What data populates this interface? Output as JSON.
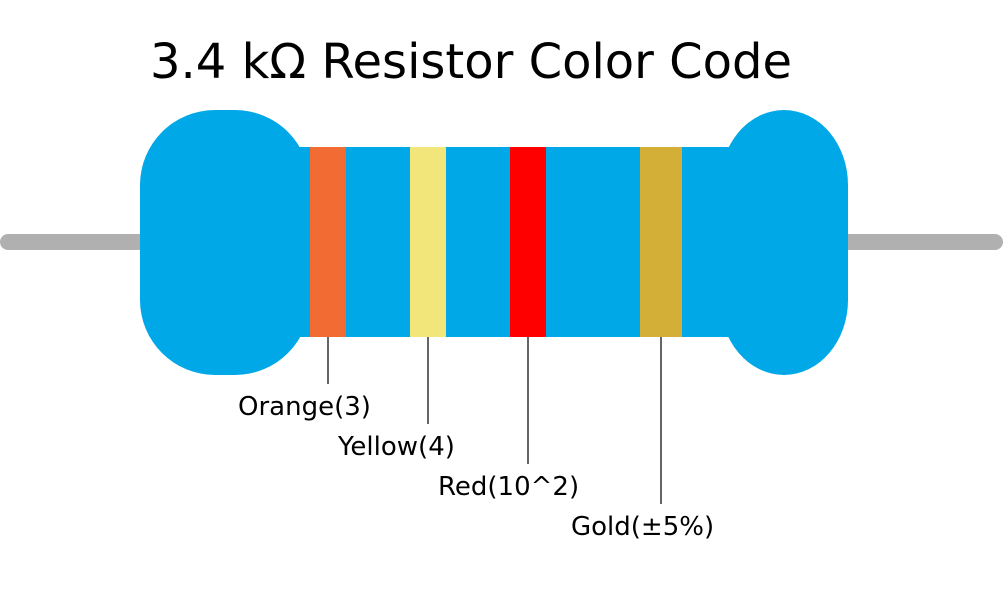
{
  "title": "3.4 kΩ Resistor Color Code",
  "colors": {
    "body": "#00A8E8",
    "lead": "#B0B0B0",
    "pointer": "#000000"
  },
  "bands": [
    {
      "name": "Orange",
      "label": "Orange(3)",
      "color": "#F26B32"
    },
    {
      "name": "Yellow",
      "label": "Yellow(4)",
      "color": "#F2E67A"
    },
    {
      "name": "Red",
      "label": "Red(10^2)",
      "color": "#FF0000"
    },
    {
      "name": "Gold",
      "label": "Gold(±5%)",
      "color": "#D4AF37"
    }
  ]
}
